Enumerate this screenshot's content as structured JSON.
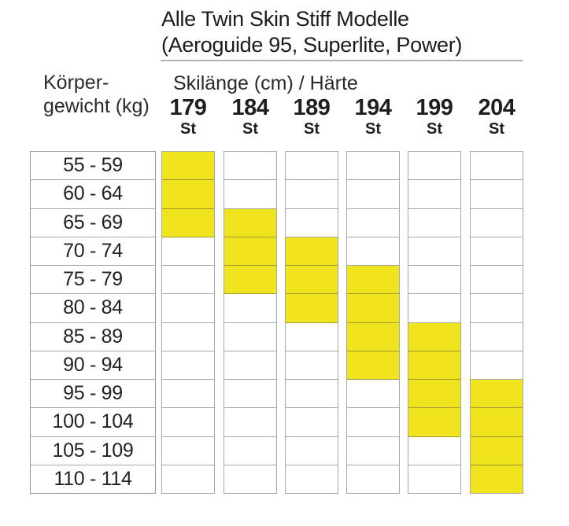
{
  "title": {
    "line1": "Alle Twin Skin Stiff Modelle",
    "line2": "(Aeroguide 95, Superlite, Power)"
  },
  "headers": {
    "weight_line1": "Körper-",
    "weight_line2": "gewicht (kg)",
    "ski": "Skilänge (cm) / Härte"
  },
  "columns": [
    {
      "length": "179",
      "haerte": "St"
    },
    {
      "length": "184",
      "haerte": "St"
    },
    {
      "length": "189",
      "haerte": "St"
    },
    {
      "length": "194",
      "haerte": "St"
    },
    {
      "length": "199",
      "haerte": "St"
    },
    {
      "length": "204",
      "haerte": "St"
    }
  ],
  "weight_rows": [
    "55 - 59",
    "60 - 64",
    "65 - 69",
    "70 - 74",
    "75 - 79",
    "80 - 84",
    "85 - 89",
    "90 - 94",
    "95 - 99",
    "100 - 104",
    "105 - 109",
    "110 - 114"
  ],
  "highlight_matrix": [
    [
      1,
      0,
      0,
      0,
      0,
      0
    ],
    [
      1,
      0,
      0,
      0,
      0,
      0
    ],
    [
      1,
      1,
      0,
      0,
      0,
      0
    ],
    [
      0,
      1,
      1,
      0,
      0,
      0
    ],
    [
      0,
      1,
      1,
      1,
      0,
      0
    ],
    [
      0,
      0,
      1,
      1,
      0,
      0
    ],
    [
      0,
      0,
      0,
      1,
      1,
      0
    ],
    [
      0,
      0,
      0,
      1,
      1,
      0
    ],
    [
      0,
      0,
      0,
      0,
      1,
      1
    ],
    [
      0,
      0,
      0,
      0,
      1,
      1
    ],
    [
      0,
      0,
      0,
      0,
      0,
      1
    ],
    [
      0,
      0,
      0,
      0,
      0,
      1
    ]
  ],
  "colors": {
    "highlight": "#F0E41E",
    "grid_line_rgba": "rgba(80,80,75,0.5)",
    "grid_line_strong_rgba": "rgba(80,80,75,0.6)",
    "rule": "#b3b3b3",
    "text": "#1f1f1f"
  },
  "chart_data": {
    "type": "heatmap",
    "title": "Alle Twin Skin Stiff Modelle (Aeroguide 95, Superlite, Power)",
    "xlabel": "Skilänge (cm) / Härte",
    "ylabel": "Körpergewicht (kg)",
    "x_categories": [
      "179 St",
      "184 St",
      "189 St",
      "194 St",
      "199 St",
      "204 St"
    ],
    "y_categories": [
      "55 - 59",
      "60 - 64",
      "65 - 69",
      "70 - 74",
      "75 - 79",
      "80 - 84",
      "85 - 89",
      "90 - 94",
      "95 - 99",
      "100 - 104",
      "105 - 109",
      "110 - 114"
    ],
    "recommended_weight_ranges_kg_by_length": {
      "179": [
        55,
        69
      ],
      "184": [
        65,
        79
      ],
      "189": [
        70,
        84
      ],
      "194": [
        75,
        94
      ],
      "199": [
        85,
        104
      ],
      "204": [
        95,
        114
      ]
    },
    "cells": [
      [
        1,
        0,
        0,
        0,
        0,
        0
      ],
      [
        1,
        0,
        0,
        0,
        0,
        0
      ],
      [
        1,
        1,
        0,
        0,
        0,
        0
      ],
      [
        0,
        1,
        1,
        0,
        0,
        0
      ],
      [
        0,
        1,
        1,
        1,
        0,
        0
      ],
      [
        0,
        0,
        1,
        1,
        0,
        0
      ],
      [
        0,
        0,
        0,
        1,
        1,
        0
      ],
      [
        0,
        0,
        0,
        1,
        1,
        0
      ],
      [
        0,
        0,
        0,
        0,
        1,
        1
      ],
      [
        0,
        0,
        0,
        0,
        1,
        1
      ],
      [
        0,
        0,
        0,
        0,
        0,
        1
      ],
      [
        0,
        0,
        0,
        0,
        0,
        1
      ]
    ],
    "highlight_color": "#F0E41E",
    "legend": "none",
    "grid": true
  }
}
